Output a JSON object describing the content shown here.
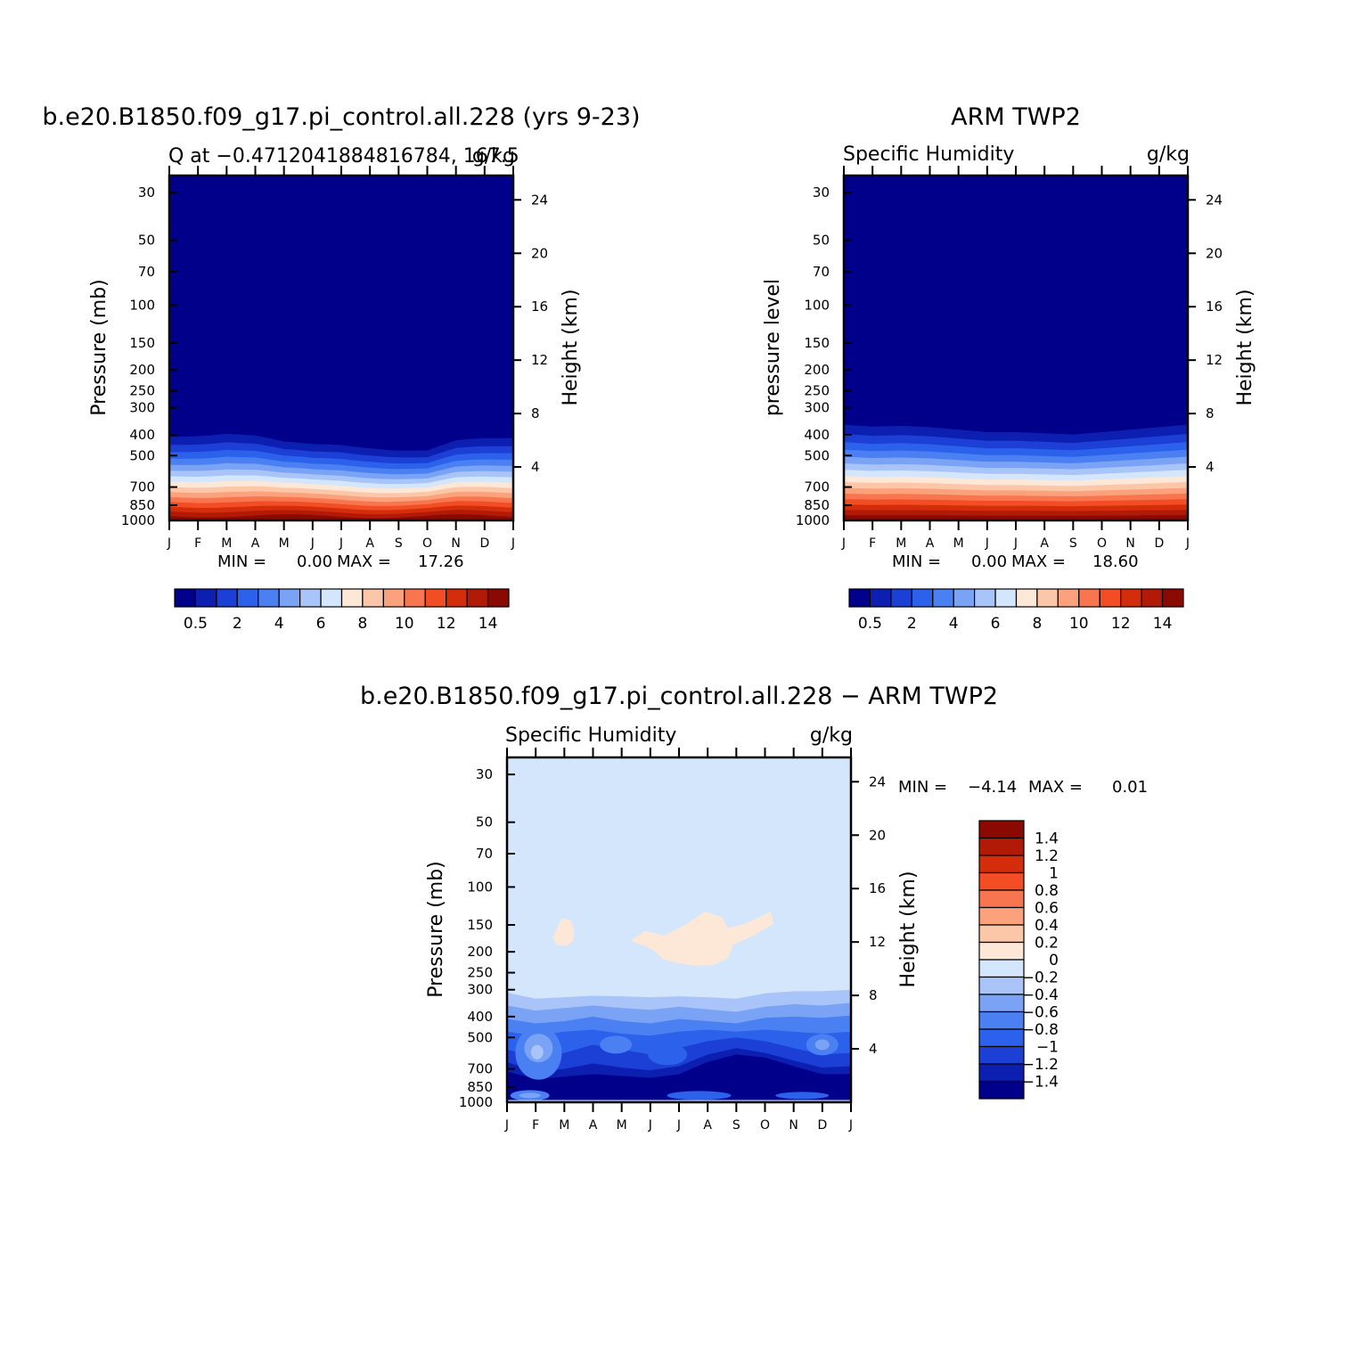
{
  "chart_data": [
    {
      "type": "heatmap",
      "title": "b.e20.B1850.f09_g17.pi_control.all.228 (yrs 9-23)",
      "subtitle_left": "Q at -0.4712041884816784, 167.5",
      "subtitle_right": "g/kg",
      "ylabel": "Pressure (mb)",
      "ylabel_right": "Height (km)",
      "x_ticks": [
        "J",
        "F",
        "M",
        "A",
        "M",
        "J",
        "J",
        "A",
        "S",
        "O",
        "N",
        "D",
        "J"
      ],
      "y_ticks": [
        30,
        50,
        70,
        100,
        150,
        200,
        250,
        300,
        400,
        500,
        700,
        850,
        1000
      ],
      "y_ticks_right": [
        24,
        20,
        16,
        12,
        8,
        4
      ],
      "ylim": [
        1000,
        25
      ],
      "y_scale": "log",
      "min_label": "MIN =",
      "min_value": "0.00",
      "max_label": "MAX =",
      "max_value": "17.26",
      "colorbar": {
        "orientation": "horizontal",
        "levels": [
          0.5,
          1,
          2,
          3,
          4,
          5,
          6,
          7,
          8,
          9,
          10,
          11,
          12,
          13,
          14
        ],
        "tick_labels": [
          "0.5",
          "2",
          "4",
          "6",
          "8",
          "10",
          "12",
          "14"
        ],
        "colors": [
          "#00008b",
          "#0d1fb0",
          "#1c3fd6",
          "#2c62eb",
          "#4a80f2",
          "#7ba3f5",
          "#a9c4f8",
          "#d4e6fb",
          "#fde8d8",
          "#fcc7a8",
          "#fba17c",
          "#f8764f",
          "#f24d24",
          "#d42d0c",
          "#b01a06",
          "#8a0a02"
        ]
      },
      "profiles": {
        "x": [
          0,
          1,
          2,
          3,
          4,
          5,
          6,
          7,
          8,
          9,
          10,
          11,
          12
        ],
        "top_pressure_by_month": [
          360,
          350,
          340,
          355,
          390,
          400,
          395,
          405,
          420,
          430,
          385,
          370,
          360
        ]
      }
    },
    {
      "type": "heatmap",
      "title": "ARM TWP2",
      "subtitle_left": "Specific Humidity",
      "subtitle_right": "g/kg",
      "ylabel": "pressure level",
      "ylabel_right": "Height (km)",
      "x_ticks": [
        "J",
        "F",
        "M",
        "A",
        "M",
        "J",
        "J",
        "A",
        "S",
        "O",
        "N",
        "D",
        "J"
      ],
      "y_ticks": [
        30,
        50,
        70,
        100,
        150,
        200,
        250,
        300,
        400,
        500,
        700,
        850,
        1000
      ],
      "y_ticks_right": [
        24,
        20,
        16,
        12,
        8,
        4
      ],
      "ylim": [
        1000,
        25
      ],
      "y_scale": "log",
      "min_label": "MIN =",
      "min_value": "0.00",
      "max_label": "MAX =",
      "max_value": "18.60",
      "colorbar": {
        "orientation": "horizontal",
        "levels": [
          0.5,
          1,
          2,
          3,
          4,
          5,
          6,
          7,
          8,
          9,
          10,
          11,
          12,
          13,
          14
        ],
        "tick_labels": [
          "0.5",
          "2",
          "4",
          "6",
          "8",
          "10",
          "12",
          "14"
        ],
        "colors": [
          "#00008b",
          "#0d1fb0",
          "#1c3fd6",
          "#2c62eb",
          "#4a80f2",
          "#7ba3f5",
          "#a9c4f8",
          "#d4e6fb",
          "#fde8d8",
          "#fcc7a8",
          "#fba17c",
          "#f8764f",
          "#f24d24",
          "#d42d0c",
          "#b01a06",
          "#8a0a02"
        ]
      },
      "profiles": {
        "x": [
          0,
          1,
          2,
          3,
          4,
          5,
          6,
          7,
          8,
          9,
          10,
          11,
          12
        ],
        "top_pressure_by_month": [
          310,
          318,
          315,
          320,
          330,
          340,
          340,
          345,
          350,
          340,
          330,
          320,
          310
        ]
      }
    },
    {
      "type": "heatmap",
      "title": "b.e20.B1850.f09_g17.pi_control.all.228 - ARM TWP2",
      "subtitle_left": "Specific Humidity",
      "subtitle_right": "g/kg",
      "ylabel": "Pressure (mb)",
      "ylabel_right": "Height (km)",
      "x_ticks": [
        "J",
        "F",
        "M",
        "A",
        "M",
        "J",
        "J",
        "A",
        "S",
        "O",
        "N",
        "D",
        "J"
      ],
      "y_ticks": [
        30,
        50,
        70,
        100,
        150,
        200,
        250,
        300,
        400,
        500,
        700,
        850,
        1000
      ],
      "y_ticks_right": [
        24,
        20,
        16,
        12,
        8,
        4
      ],
      "ylim": [
        1000,
        25
      ],
      "y_scale": "log",
      "min_label": "MIN =",
      "min_value": "-4.14",
      "max_label": "MAX =",
      "max_value": "0.01",
      "colorbar": {
        "orientation": "vertical",
        "levels": [
          1.4,
          1.2,
          1,
          0.8,
          0.6,
          0.4,
          0.2,
          0,
          -0.2,
          -0.4,
          -0.6,
          -0.8,
          -1,
          -1.2,
          -1.4
        ],
        "tick_labels": [
          "1.4",
          "1.2",
          "1",
          "0.8",
          "0.6",
          "0.4",
          "0.2",
          "0",
          "-0.2",
          "-0.4",
          "-0.6",
          "-0.8",
          "-1",
          "-1.2",
          "-1.4"
        ],
        "colors": [
          "#8a0a02",
          "#b01a06",
          "#d42d0c",
          "#f24d24",
          "#f8764f",
          "#fba17c",
          "#fcc7a8",
          "#fde8d8",
          "#d4e6fb",
          "#a9c4f8",
          "#7ba3f5",
          "#4a80f2",
          "#2c62eb",
          "#1c3fd6",
          "#0d1fb0",
          "#00008b"
        ]
      }
    }
  ]
}
